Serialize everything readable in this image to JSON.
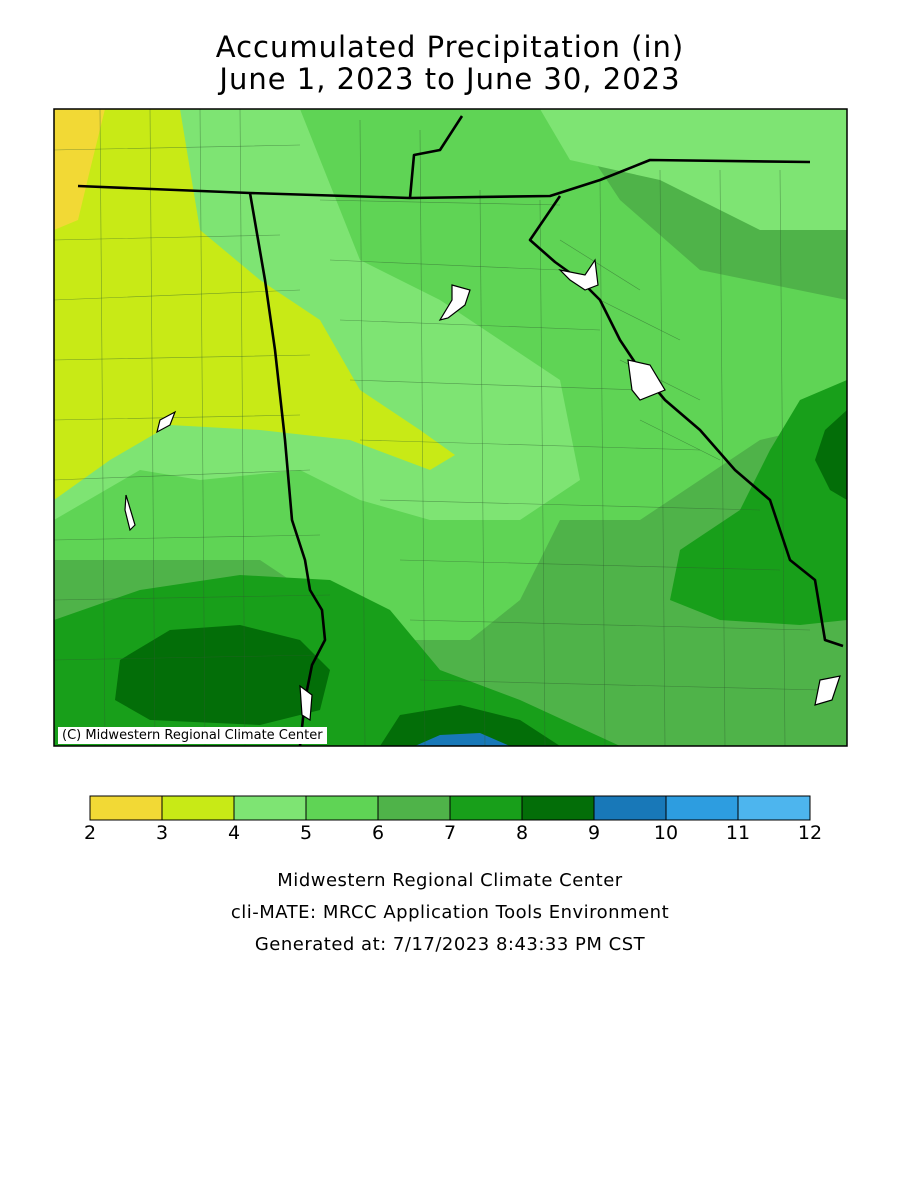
{
  "title": {
    "line1": "Accumulated Precipitation (in)",
    "line2": "June 1, 2023 to June 30, 2023"
  },
  "map": {
    "credit": "(C) Midwestern Regional Climate Center"
  },
  "legend": {
    "ticks": [
      "2",
      "3",
      "4",
      "5",
      "6",
      "7",
      "8",
      "9",
      "10",
      "11",
      "12"
    ],
    "colors": [
      "#f2d935",
      "#c8ea16",
      "#7ee473",
      "#5fd455",
      "#4fb349",
      "#189f1a",
      "#036e08",
      "#1878b8",
      "#2d9de0",
      "#4db5ee"
    ]
  },
  "footer": {
    "line1": "Midwestern Regional Climate Center",
    "line2": "cli-MATE: MRCC Application Tools Environment",
    "line3": "Generated at: 7/17/2023 8:43:33 PM CST"
  }
}
